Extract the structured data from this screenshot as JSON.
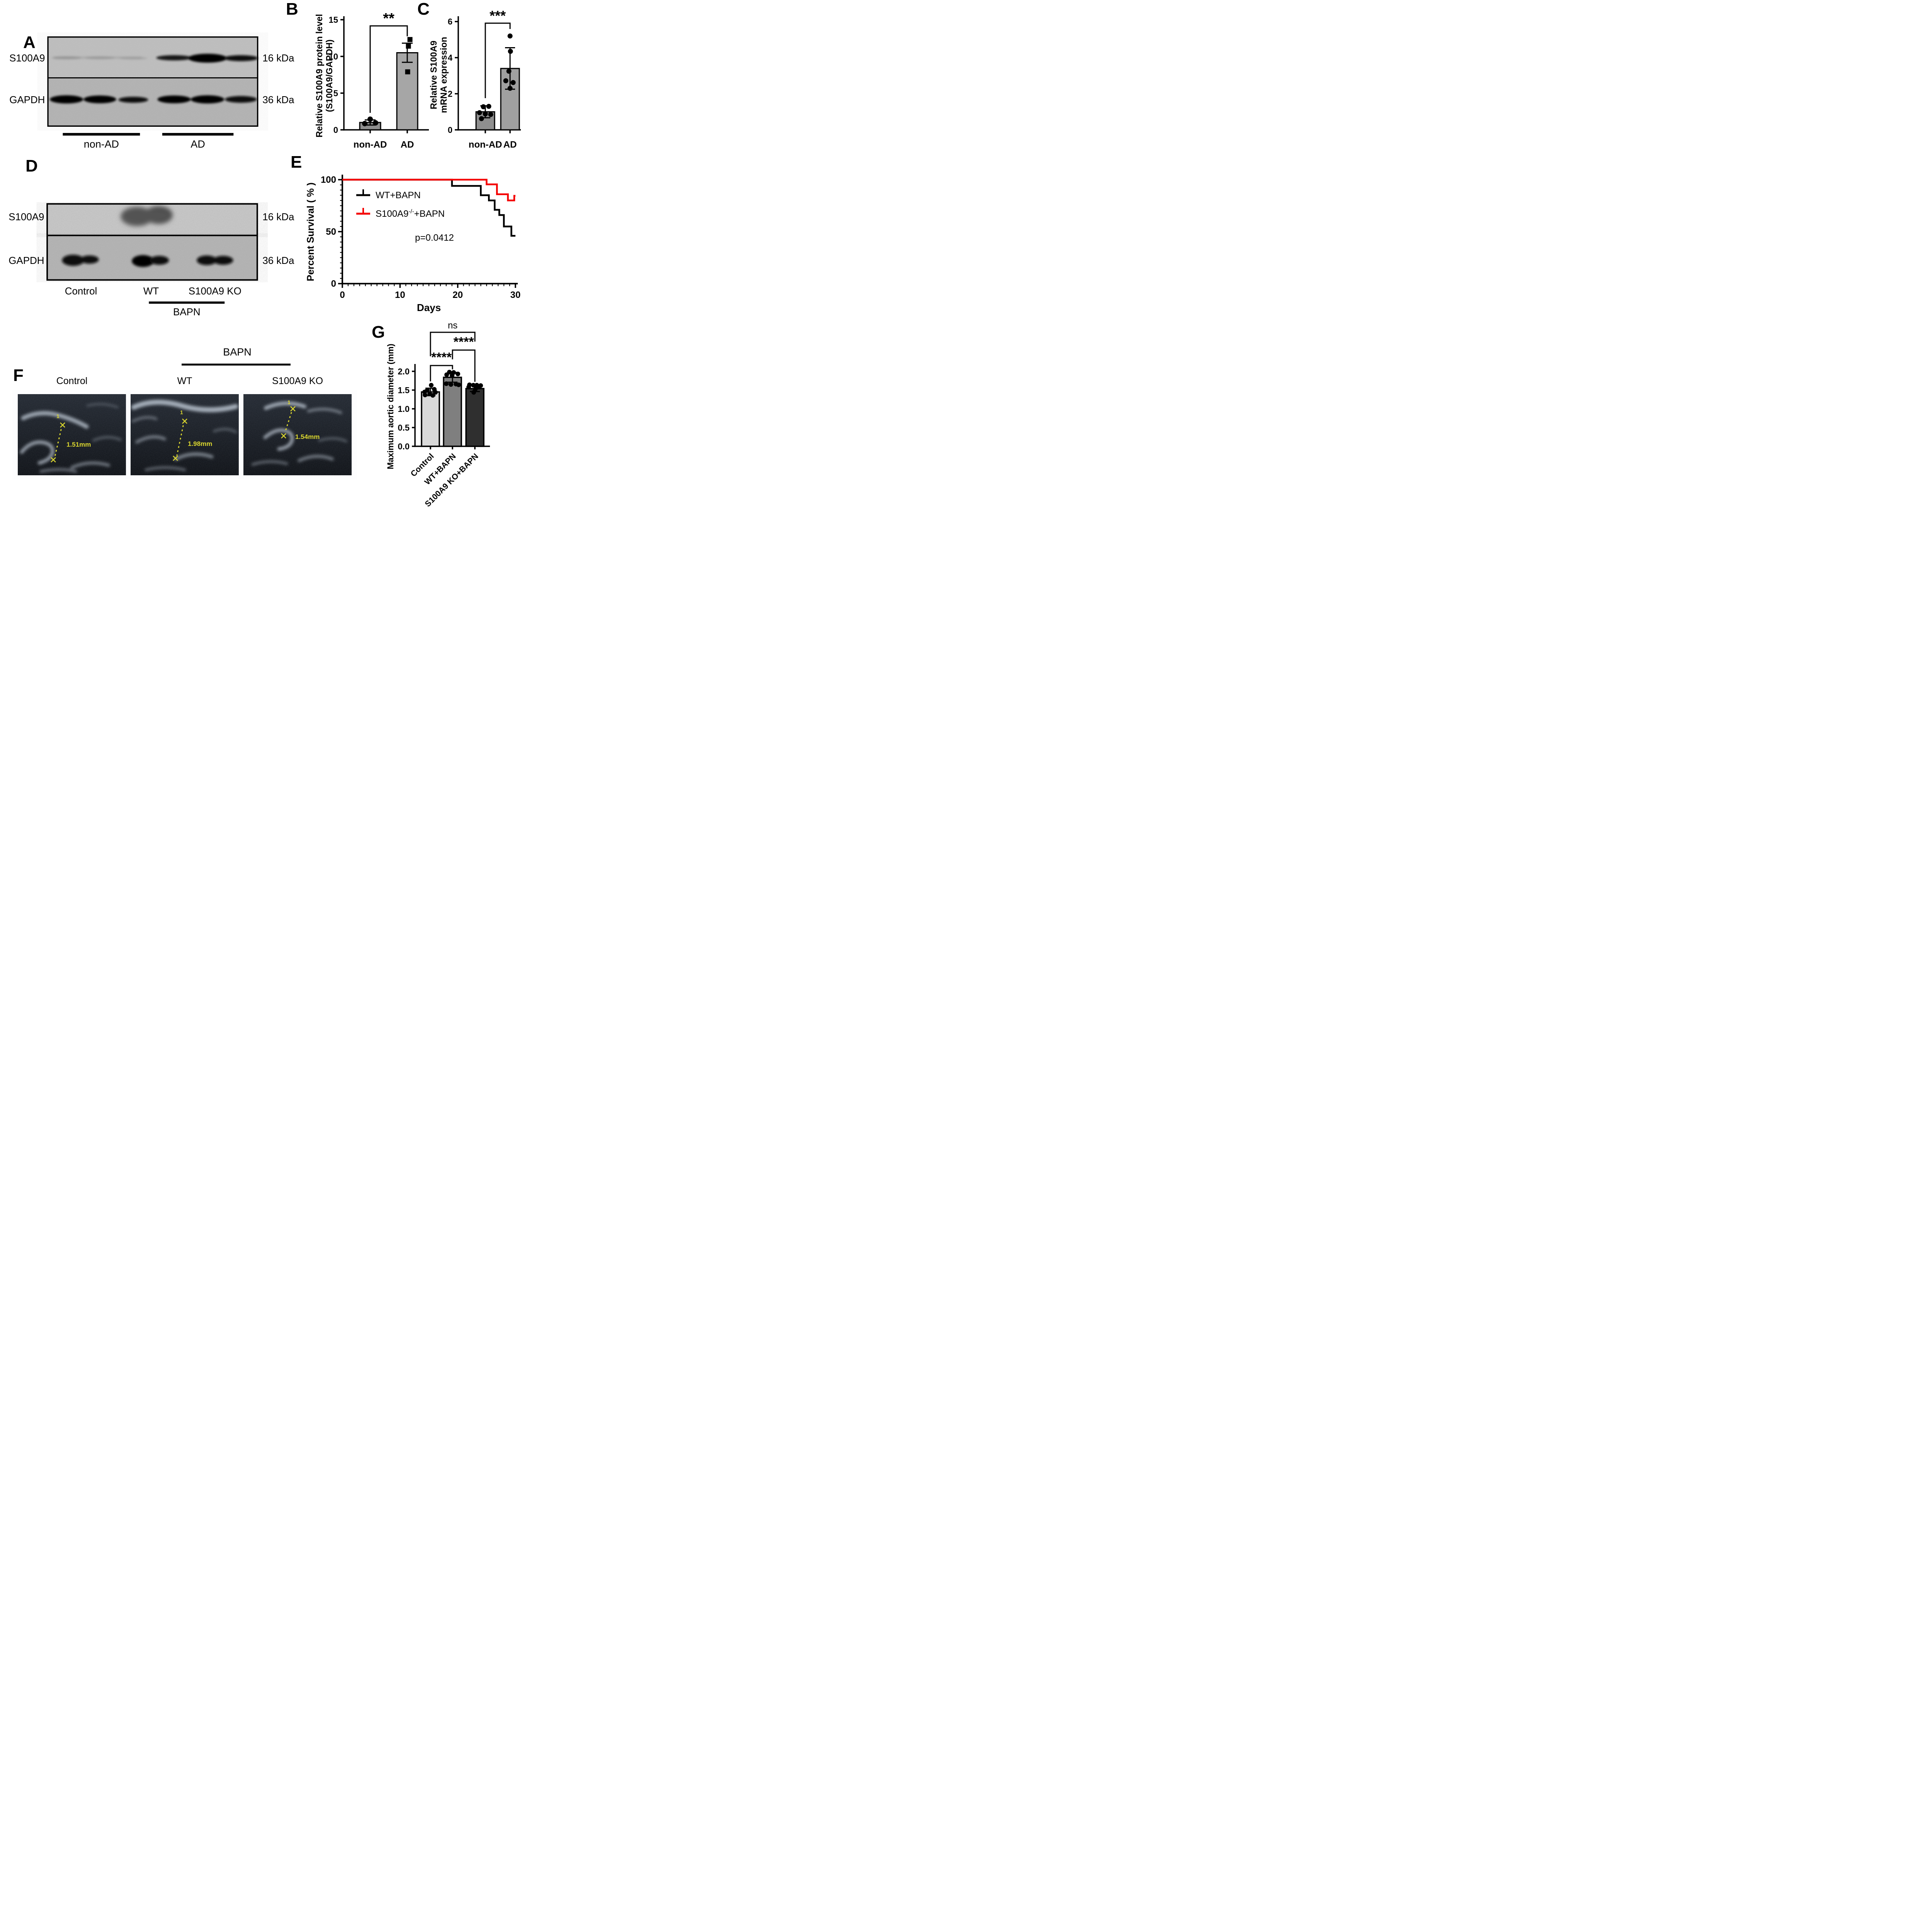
{
  "colors": {
    "survival_wt": "#000000",
    "survival_ko": "#f40000",
    "bar_b_fills": [
      "#8f8f8f",
      "#a6a6a6"
    ],
    "bar_c_fills": [
      "#8f8f8f",
      "#a0a0a0"
    ],
    "bar_g_fills": [
      "#d9d9d9",
      "#7f7f7f",
      "#2f2f2f"
    ],
    "ultrasound_annotation": "#d9d52f"
  },
  "panels": {
    "A": {
      "letter": "A",
      "rows": [
        {
          "protein": "S100A9",
          "marker": "16 kDa"
        },
        {
          "protein": "GAPDH",
          "marker": "36 kDa"
        }
      ],
      "groups": [
        {
          "label": "non-AD"
        },
        {
          "label": "AD"
        }
      ]
    },
    "B": {
      "letter": "B",
      "chart_data": {
        "type": "bar",
        "categories": [
          "non-AD",
          "AD"
        ],
        "values": [
          1.0,
          10.5
        ],
        "errors": [
          [
            0.65,
            1.35
          ],
          [
            9.2,
            11.8
          ]
        ],
        "points": [
          [
            0.85,
            1.45,
            0.95
          ],
          [
            12.3,
            11.4,
            7.9
          ]
        ],
        "point_shapes": [
          "circle",
          "square"
        ],
        "ylabel_lines": [
          "Relative S100A9 protein level",
          "(S100A9/GAPDH)"
        ],
        "ylim": [
          0,
          15
        ],
        "yticks": [
          0,
          5,
          10,
          15
        ],
        "significance": [
          {
            "between": [
              "non-AD",
              "AD"
            ],
            "label": "**"
          }
        ]
      }
    },
    "C": {
      "letter": "C",
      "chart_data": {
        "type": "bar",
        "categories": [
          "non-AD",
          "AD"
        ],
        "values": [
          1.0,
          3.4
        ],
        "errors": [
          [
            0.67,
            1.33
          ],
          [
            2.25,
            4.55
          ]
        ],
        "points": [
          [
            0.95,
            1.28,
            1.3,
            0.88,
            0.85,
            0.62
          ],
          [
            5.2,
            4.35,
            3.25,
            2.72,
            2.62,
            2.3
          ]
        ],
        "point_shapes": [
          "circle",
          "circle"
        ],
        "ylabel_lines": [
          "Relative S100A9",
          "mRNA expression"
        ],
        "ylim": [
          0,
          6
        ],
        "yticks": [
          0,
          2,
          4,
          6
        ],
        "significance": [
          {
            "between": [
              "non-AD",
              "AD"
            ],
            "label": "***"
          }
        ]
      }
    },
    "D": {
      "letter": "D",
      "rows": [
        {
          "protein": "S100A9",
          "marker": "16 kDa"
        },
        {
          "protein": "GAPDH",
          "marker": "36 kDa"
        }
      ],
      "lanes": [
        "Control",
        "WT",
        "S100A9 KO"
      ],
      "treatment": "BAPN"
    },
    "E": {
      "letter": "E",
      "p_value": "p=0.0412",
      "chart_data": {
        "type": "line",
        "subtype": "kaplan-meier-survival",
        "xlabel": "Days",
        "ylabel": "Percent Survival ( % )",
        "xlim": [
          0,
          30
        ],
        "ylim": [
          0,
          100
        ],
        "xticks": [
          0,
          10,
          20,
          30
        ],
        "yticks": [
          0,
          50,
          100
        ],
        "legend_position": "upper-left-inside",
        "series": [
          {
            "name": "WT+BAPN",
            "color": "#000000",
            "steps": [
              [
                0,
                100
              ],
              [
                19,
                100
              ],
              [
                19,
                94
              ],
              [
                24,
                94
              ],
              [
                24,
                85
              ],
              [
                25.4,
                85
              ],
              [
                25.4,
                80
              ],
              [
                26.4,
                80
              ],
              [
                26.4,
                71
              ],
              [
                27.2,
                71
              ],
              [
                27.2,
                66
              ],
              [
                28,
                66
              ],
              [
                28,
                55
              ],
              [
                29.3,
                55
              ],
              [
                29.3,
                46
              ],
              [
                30,
                46
              ]
            ]
          },
          {
            "name": "S100A9-/-+BAPN",
            "name_parts": {
              "base": "S100A9",
              "sup": "-/-",
              "suffix": "+BAPN"
            },
            "color": "#f40000",
            "steps": [
              [
                0,
                100
              ],
              [
                25,
                100
              ],
              [
                25,
                95.5
              ],
              [
                26.8,
                95.5
              ],
              [
                26.8,
                86
              ],
              [
                28.7,
                86
              ],
              [
                28.7,
                80
              ],
              [
                29.8,
                80
              ],
              [
                29.8,
                84.5
              ],
              [
                30,
                84.5
              ]
            ]
          }
        ]
      }
    },
    "F": {
      "letter": "F",
      "treatment": "BAPN",
      "images": [
        {
          "label": "Control",
          "marker": "1",
          "measurement": "1.51mm"
        },
        {
          "label": "WT",
          "marker": "1",
          "measurement": "1.98mm"
        },
        {
          "label": "S100A9 KO",
          "marker": "1",
          "measurement": "1.54mm"
        }
      ]
    },
    "G": {
      "letter": "G",
      "chart_data": {
        "type": "bar",
        "categories": [
          "Control",
          "WT+BAPN",
          "S100A9 KO+BAPN"
        ],
        "values": [
          1.45,
          1.84,
          1.54
        ],
        "errors": [
          [
            1.35,
            1.55
          ],
          [
            1.71,
            1.97
          ],
          [
            1.46,
            1.62
          ]
        ],
        "points": [
          [
            1.63,
            1.52,
            1.5,
            1.45,
            1.44,
            1.4,
            1.37,
            1.36
          ],
          [
            1.98,
            1.97,
            1.93,
            1.91,
            1.89,
            1.67,
            1.66,
            1.65,
            1.64
          ],
          [
            1.64,
            1.63,
            1.63,
            1.62,
            1.58,
            1.58,
            1.52,
            1.44
          ]
        ],
        "point_shapes": [
          "circle",
          "circle",
          "circle"
        ],
        "ylabel_lines": [
          "Maximum aortic diameter (mm)"
        ],
        "ylim": [
          0,
          2.2
        ],
        "yticks": [
          0,
          0.5,
          1,
          1.5,
          2
        ],
        "ytick_labels": [
          "0.0",
          "0.5",
          "1.0",
          "1.5",
          "2.0"
        ],
        "significance": [
          {
            "between": [
              "Control",
              "S100A9 KO+BAPN"
            ],
            "label": "ns"
          },
          {
            "between": [
              "WT+BAPN",
              "S100A9 KO+BAPN"
            ],
            "label": "****"
          },
          {
            "between": [
              "Control",
              "WT+BAPN"
            ],
            "label": "****"
          }
        ]
      }
    }
  }
}
